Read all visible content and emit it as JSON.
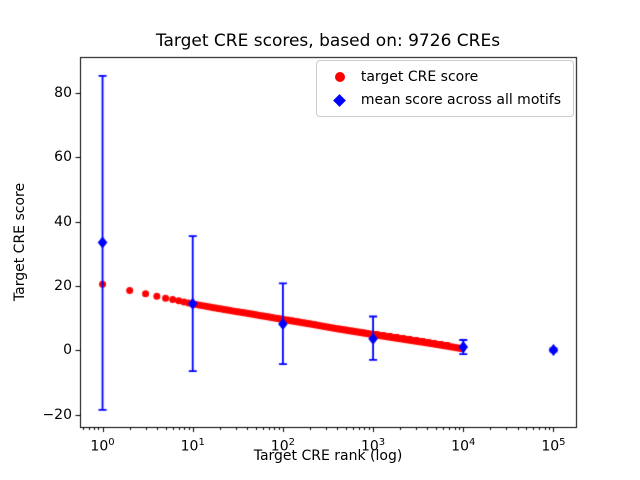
{
  "figure": {
    "title": "Target CRE scores, based on: 9726 CREs",
    "xlabel": "Target CRE rank (log)",
    "ylabel": "Target CRE score"
  },
  "legend": {
    "items": [
      {
        "label": "target CRE score",
        "marker": "circle",
        "color": "#ff0000"
      },
      {
        "label": "mean score across all motifs",
        "marker": "diamond",
        "color": "#0000ff"
      }
    ]
  },
  "chart_data": {
    "type": "scatter",
    "title": "Target CRE scores, based on: 9726 CREs",
    "xlabel": "Target CRE rank (log)",
    "ylabel": "Target CRE score",
    "x_scale": "log",
    "xlim_log10": [
      -0.25,
      5.25
    ],
    "ylim": [
      -24,
      91
    ],
    "x_ticks": [
      1,
      10,
      100,
      1000,
      10000,
      100000
    ],
    "y_ticks": [
      -20,
      0,
      20,
      40,
      60,
      80
    ],
    "grid": false,
    "legend_position": "upper right",
    "n_cres": 9726,
    "series": [
      {
        "name": "target CRE score",
        "type": "scatter",
        "color": "#ff0000",
        "marker": "circle",
        "n_points": 9726,
        "curve_log10x_y": [
          [
            0,
            20.5
          ],
          [
            0.301,
            18.6
          ],
          [
            0.477,
            17.6
          ],
          [
            0.602,
            16.8
          ],
          [
            0.699,
            16.2
          ],
          [
            0.845,
            15.4
          ],
          [
            1.0,
            14.4
          ],
          [
            1.301,
            12.9
          ],
          [
            1.602,
            11.5
          ],
          [
            2.0,
            9.6
          ],
          [
            2.301,
            8.2
          ],
          [
            2.602,
            6.7
          ],
          [
            3.0,
            4.9
          ],
          [
            3.301,
            3.6
          ],
          [
            3.602,
            2.3
          ],
          [
            3.845,
            1.2
          ],
          [
            3.988,
            0.5
          ]
        ]
      },
      {
        "name": "mean score across all motifs",
        "type": "errorbar",
        "color": "#0000ff",
        "marker": "diamond",
        "points": [
          {
            "x": 1,
            "mean": 33.5,
            "lo": -18.5,
            "hi": 85.3
          },
          {
            "x": 10,
            "mean": 14.5,
            "lo": -6.5,
            "hi": 35.5
          },
          {
            "x": 100,
            "mean": 8.2,
            "lo": -4.3,
            "hi": 20.8
          },
          {
            "x": 1000,
            "mean": 3.6,
            "lo": -3.0,
            "hi": 10.5
          },
          {
            "x": 10000,
            "mean": 1.0,
            "lo": -1.2,
            "hi": 3.2
          },
          {
            "x": 100000,
            "mean": 0.1,
            "lo": -0.4,
            "hi": 0.6
          }
        ]
      }
    ]
  }
}
